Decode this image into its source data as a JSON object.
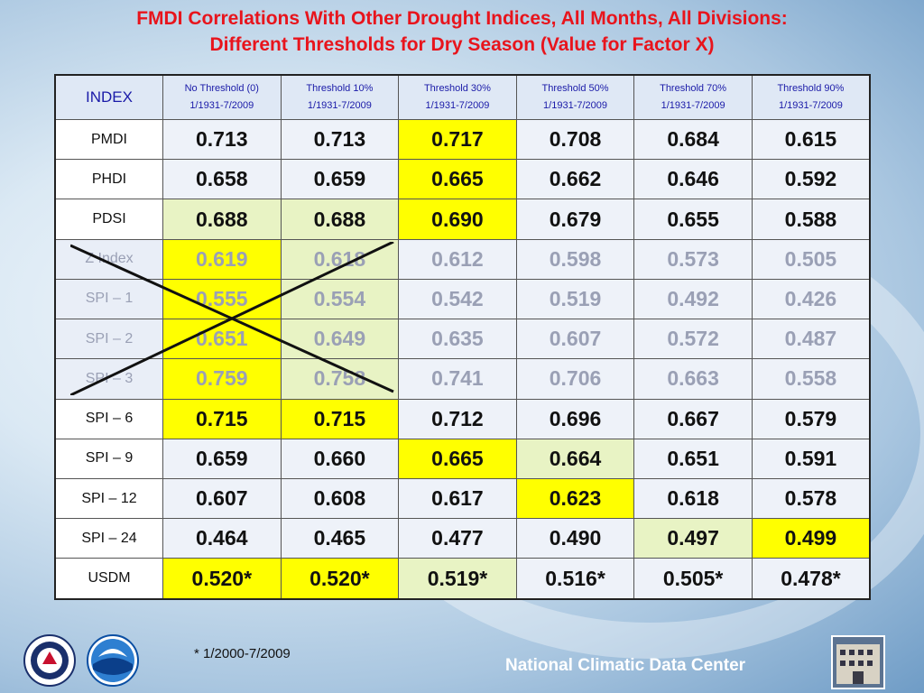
{
  "title": {
    "line1": "FMDI Correlations With Other Drought Indices, All Months, All Divisions:",
    "line2": "Different Thresholds for Dry Season (Value for Factor X)"
  },
  "table": {
    "index_header": "INDEX",
    "columns": [
      {
        "name": "No Threshold (0)",
        "period": "1/1931-7/2009"
      },
      {
        "name": "Threshold 10%",
        "period": "1/1931-7/2009"
      },
      {
        "name": "Threshold 30%",
        "period": "1/1931-7/2009"
      },
      {
        "name": "Threshold 50%",
        "period": "1/1931-7/2009"
      },
      {
        "name": "Threshold 70%",
        "period": "1/1931-7/2009"
      },
      {
        "name": "Threshold 90%",
        "period": "1/1931-7/2009"
      }
    ],
    "rows": [
      {
        "label": "PMDI",
        "values": [
          "0.713",
          "0.713",
          "0.717",
          "0.708",
          "0.684",
          "0.615"
        ]
      },
      {
        "label": "PHDI",
        "values": [
          "0.658",
          "0.659",
          "0.665",
          "0.662",
          "0.646",
          "0.592"
        ]
      },
      {
        "label": "PDSI",
        "values": [
          "0.688",
          "0.688",
          "0.690",
          "0.679",
          "0.655",
          "0.588"
        ]
      },
      {
        "label": "Z Index",
        "values": [
          "0.619",
          "0.618",
          "0.612",
          "0.598",
          "0.573",
          "0.505"
        ]
      },
      {
        "label": "SPI – 1",
        "values": [
          "0.555",
          "0.554",
          "0.542",
          "0.519",
          "0.492",
          "0.426"
        ]
      },
      {
        "label": "SPI – 2",
        "values": [
          "0.651",
          "0.649",
          "0.635",
          "0.607",
          "0.572",
          "0.487"
        ]
      },
      {
        "label": "SPI – 3",
        "values": [
          "0.759",
          "0.758",
          "0.741",
          "0.706",
          "0.663",
          "0.558"
        ]
      },
      {
        "label": "SPI – 6",
        "values": [
          "0.715",
          "0.715",
          "0.712",
          "0.696",
          "0.667",
          "0.579"
        ]
      },
      {
        "label": "SPI – 9",
        "values": [
          "0.659",
          "0.660",
          "0.665",
          "0.664",
          "0.651",
          "0.591"
        ]
      },
      {
        "label": "SPI – 12",
        "values": [
          "0.607",
          "0.608",
          "0.617",
          "0.623",
          "0.618",
          "0.578"
        ]
      },
      {
        "label": "SPI – 24",
        "values": [
          "0.464",
          "0.465",
          "0.477",
          "0.490",
          "0.497",
          "0.499"
        ]
      },
      {
        "label": "USDM",
        "values": [
          "0.520*",
          "0.520*",
          "0.519*",
          "0.516*",
          "0.505*",
          "0.478*"
        ]
      }
    ]
  },
  "footnote": "* 1/2000-7/2009",
  "footer_text": "National Climatic Data Center",
  "colors": {
    "title": "#e8141c",
    "header_text": "#1a1aa8",
    "highlight": "#ffff00",
    "light_highlight": "#e8f3c4",
    "dimmed_text": "#9aa0b5"
  },
  "icons": [
    "department-of-commerce-seal",
    "noaa-logo",
    "ncdc-building-photo"
  ]
}
